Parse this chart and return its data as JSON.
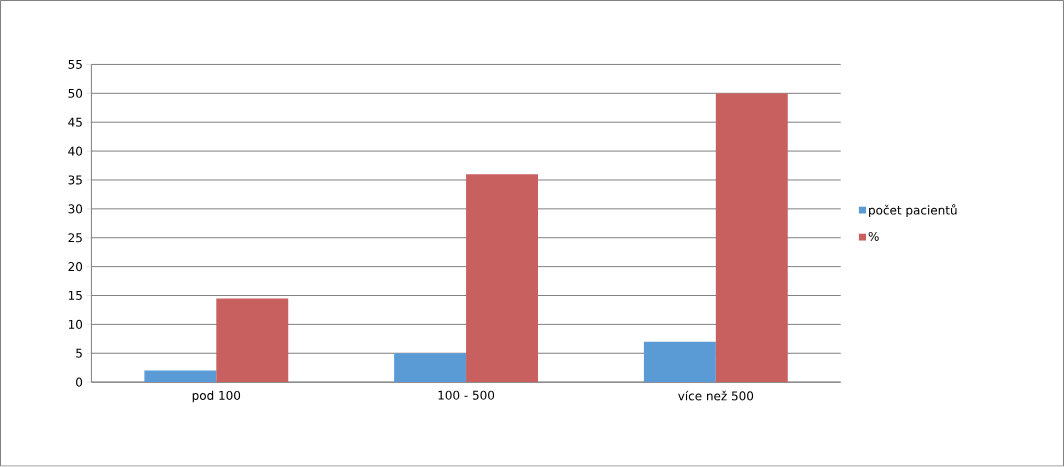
{
  "chart_data": {
    "type": "bar",
    "categories": [
      "pod 100",
      "100 - 500",
      "více než 500"
    ],
    "series": [
      {
        "name": "počet pacientů",
        "color": "#5b9bd5",
        "values": [
          2,
          5,
          7
        ]
      },
      {
        "name": "%",
        "color": "#c86060",
        "values": [
          14.5,
          36,
          50
        ]
      }
    ],
    "ylim": [
      0,
      55
    ],
    "yticks": [
      0,
      5,
      10,
      15,
      20,
      25,
      30,
      35,
      40,
      45,
      50,
      55
    ],
    "grid": "y",
    "legend": "right"
  }
}
